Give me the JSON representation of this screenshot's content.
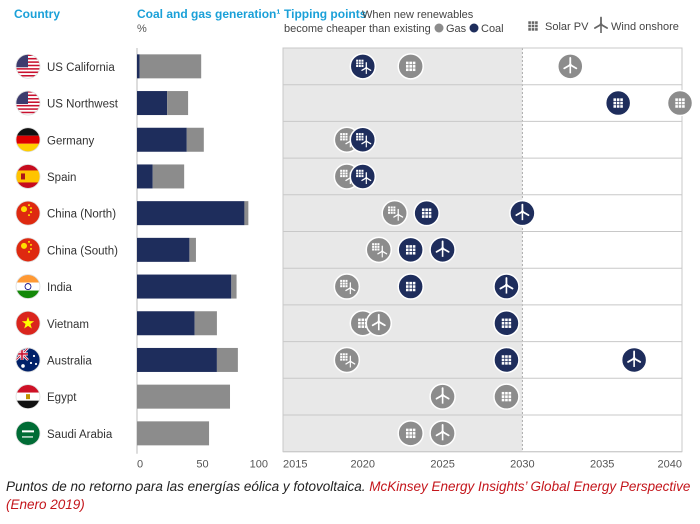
{
  "header": {
    "country": "Country",
    "generation_title": "Coal and gas generation¹",
    "generation_unit": "%",
    "tipping_title": "Tipping points",
    "tipping_desc_1": "When new renewables",
    "tipping_desc_2": "become cheaper than existing",
    "legend_gas": "Gas",
    "legend_coal": "Coal",
    "legend_solar": "Solar PV",
    "legend_wind": "Wind onshore"
  },
  "colors": {
    "coal": "#1e2d5c",
    "gas": "#8c8c8c",
    "shade": "#e8e8e8",
    "heading": "#1aa0d8"
  },
  "icons": {
    "solar": "solar-pv-icon",
    "wind": "wind-turbine-icon"
  },
  "chart_data": {
    "type": "bar",
    "categories": [
      "US California",
      "US Northwest",
      "Germany",
      "Spain",
      "China (North)",
      "China (South)",
      "India",
      "Vietnam",
      "Australia",
      "Egypt",
      "Saudi Arabia"
    ],
    "series": [
      {
        "name": "Coal",
        "values": [
          2,
          23,
          38,
          12,
          82,
          40,
          72,
          44,
          61,
          0,
          0
        ]
      },
      {
        "name": "Gas",
        "values": [
          47,
          16,
          13,
          24,
          3,
          5,
          4,
          17,
          16,
          71,
          55
        ]
      }
    ],
    "bar_xlim": [
      0,
      100
    ],
    "bar_ticks": [
      "0",
      "50",
      "100"
    ],
    "year_xlim": [
      2015,
      2040
    ],
    "year_ticks": [
      "2015",
      "2020",
      "2025",
      "2030",
      "2035",
      "2040"
    ],
    "shade_range": [
      2015,
      2030
    ],
    "grid": true,
    "tipping_points": [
      {
        "country": "US California",
        "points": [
          {
            "year": 2020,
            "vs": "coal",
            "tech": "solar"
          },
          {
            "year": 2020,
            "vs": "coal",
            "tech": "wind"
          },
          {
            "year": 2023,
            "vs": "gas",
            "tech": "solar"
          },
          {
            "year": 2033,
            "vs": "gas",
            "tech": "wind"
          }
        ]
      },
      {
        "country": "US Northwest",
        "points": [
          {
            "year": 2036,
            "vs": "coal",
            "tech": "solar"
          },
          {
            "year": 2041,
            "vs": "gas",
            "tech": "solar"
          }
        ]
      },
      {
        "country": "Germany",
        "points": [
          {
            "year": 2019,
            "vs": "gas",
            "tech": "solar"
          },
          {
            "year": 2019,
            "vs": "gas",
            "tech": "wind"
          },
          {
            "year": 2020,
            "vs": "coal",
            "tech": "solar"
          },
          {
            "year": 2020,
            "vs": "coal",
            "tech": "wind"
          }
        ]
      },
      {
        "country": "Spain",
        "points": [
          {
            "year": 2019,
            "vs": "gas",
            "tech": "solar"
          },
          {
            "year": 2019,
            "vs": "gas",
            "tech": "wind"
          },
          {
            "year": 2020,
            "vs": "coal",
            "tech": "solar"
          },
          {
            "year": 2020,
            "vs": "coal",
            "tech": "wind"
          }
        ]
      },
      {
        "country": "China (North)",
        "points": [
          {
            "year": 2022,
            "vs": "gas",
            "tech": "solar"
          },
          {
            "year": 2022,
            "vs": "gas",
            "tech": "wind"
          },
          {
            "year": 2024,
            "vs": "coal",
            "tech": "solar"
          },
          {
            "year": 2030,
            "vs": "coal",
            "tech": "wind"
          }
        ]
      },
      {
        "country": "China (South)",
        "points": [
          {
            "year": 2021,
            "vs": "gas",
            "tech": "solar"
          },
          {
            "year": 2021,
            "vs": "gas",
            "tech": "wind"
          },
          {
            "year": 2023,
            "vs": "coal",
            "tech": "solar"
          },
          {
            "year": 2025,
            "vs": "coal",
            "tech": "wind"
          }
        ]
      },
      {
        "country": "India",
        "points": [
          {
            "year": 2019,
            "vs": "gas",
            "tech": "solar"
          },
          {
            "year": 2019,
            "vs": "gas",
            "tech": "wind"
          },
          {
            "year": 2023,
            "vs": "coal",
            "tech": "solar"
          },
          {
            "year": 2029,
            "vs": "coal",
            "tech": "wind"
          }
        ]
      },
      {
        "country": "Vietnam",
        "points": [
          {
            "year": 2020,
            "vs": "gas",
            "tech": "solar"
          },
          {
            "year": 2021,
            "vs": "gas",
            "tech": "wind"
          },
          {
            "year": 2029,
            "vs": "coal",
            "tech": "solar"
          }
        ]
      },
      {
        "country": "Australia",
        "points": [
          {
            "year": 2019,
            "vs": "gas",
            "tech": "solar"
          },
          {
            "year": 2019,
            "vs": "gas",
            "tech": "wind"
          },
          {
            "year": 2029,
            "vs": "coal",
            "tech": "solar"
          },
          {
            "year": 2037,
            "vs": "coal",
            "tech": "wind"
          }
        ]
      },
      {
        "country": "Egypt",
        "points": [
          {
            "year": 2025,
            "vs": "gas",
            "tech": "wind"
          },
          {
            "year": 2029,
            "vs": "gas",
            "tech": "solar"
          }
        ]
      },
      {
        "country": "Saudi Arabia",
        "points": [
          {
            "year": 2023,
            "vs": "gas",
            "tech": "solar"
          },
          {
            "year": 2025,
            "vs": "gas",
            "tech": "wind"
          }
        ]
      }
    ]
  },
  "caption": {
    "text": "Puntos de no retorno para las energías eólica y fotovoltaica. ",
    "source": "McKinsey Energy Insights’ Global Energy Perspective (Enero 2019)"
  }
}
